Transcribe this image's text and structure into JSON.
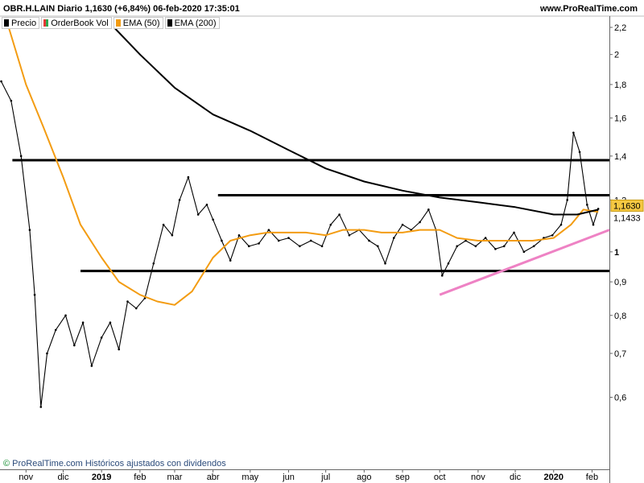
{
  "header": {
    "title": "OBR.H.LAIN Diario 1,1630 (+6,84%) 06-feb-2020 17:35:01",
    "brand": "www.ProRealTime.com"
  },
  "legend": [
    {
      "label": "Precio",
      "color": "#000000"
    },
    {
      "label": "OrderBook Vol",
      "color": "#2fa84f"
    },
    {
      "label": "EMA (50)",
      "color": "#f39c12"
    },
    {
      "label": "EMA (200)",
      "color": "#000000"
    }
  ],
  "footer": {
    "copyright": "©",
    "text": "ProRealTime.com Históricos ajustados con dividendos"
  },
  "chart_data": {
    "type": "line",
    "title": "OBR.H.LAIN Diario 1,1630 (+6,84%) 06-feb-2020 17:35:01",
    "y_scale": "log",
    "ylim": [
      0.5,
      2.2
    ],
    "y_ticks": [
      "2,2",
      "2",
      "1,8",
      "1,6",
      "1,4",
      "1,2",
      "1",
      "0,9",
      "0,8",
      "0,7",
      "0,6"
    ],
    "y_tick_values": [
      2.2,
      2.0,
      1.8,
      1.6,
      1.4,
      1.2,
      1.0,
      0.9,
      0.8,
      0.7,
      0.6
    ],
    "xlim": [
      "2018-10-11",
      "2020-02-15"
    ],
    "x_ticks": [
      {
        "label": "nov",
        "date": "2018-11-01",
        "bold": false
      },
      {
        "label": "dic",
        "date": "2018-12-01",
        "bold": false
      },
      {
        "label": "2019",
        "date": "2019-01-01",
        "bold": true
      },
      {
        "label": "feb",
        "date": "2019-02-01",
        "bold": false
      },
      {
        "label": "mar",
        "date": "2019-03-01",
        "bold": false
      },
      {
        "label": "abr",
        "date": "2019-04-01",
        "bold": false
      },
      {
        "label": "may",
        "date": "2019-05-01",
        "bold": false
      },
      {
        "label": "jun",
        "date": "2019-06-01",
        "bold": false
      },
      {
        "label": "jul",
        "date": "2019-07-01",
        "bold": false
      },
      {
        "label": "ago",
        "date": "2019-08-01",
        "bold": false
      },
      {
        "label": "sep",
        "date": "2019-09-01",
        "bold": false
      },
      {
        "label": "oct",
        "date": "2019-10-01",
        "bold": false
      },
      {
        "label": "nov",
        "date": "2019-11-01",
        "bold": false
      },
      {
        "label": "dic",
        "date": "2019-12-01",
        "bold": false
      },
      {
        "label": "2020",
        "date": "2020-01-01",
        "bold": true
      },
      {
        "label": "feb",
        "date": "2020-02-01",
        "bold": false
      }
    ],
    "series": [
      {
        "name": "Precio",
        "color": "#000000",
        "x": [
          "2018-10-12",
          "2018-10-20",
          "2018-10-28",
          "2018-11-04",
          "2018-11-08",
          "2018-11-13",
          "2018-11-18",
          "2018-11-25",
          "2018-12-03",
          "2018-12-10",
          "2018-12-17",
          "2018-12-24",
          "2019-01-01",
          "2019-01-08",
          "2019-01-15",
          "2019-01-22",
          "2019-01-29",
          "2019-02-05",
          "2019-02-12",
          "2019-02-20",
          "2019-02-27",
          "2019-03-05",
          "2019-03-12",
          "2019-03-20",
          "2019-03-27",
          "2019-04-01",
          "2019-04-08",
          "2019-04-15",
          "2019-04-22",
          "2019-04-30",
          "2019-05-08",
          "2019-05-16",
          "2019-05-24",
          "2019-06-01",
          "2019-06-10",
          "2019-06-19",
          "2019-06-28",
          "2019-07-05",
          "2019-07-12",
          "2019-07-20",
          "2019-07-28",
          "2019-08-05",
          "2019-08-12",
          "2019-08-18",
          "2019-08-25",
          "2019-09-01",
          "2019-09-08",
          "2019-09-15",
          "2019-09-22",
          "2019-09-28",
          "2019-10-03",
          "2019-10-08",
          "2019-10-15",
          "2019-10-22",
          "2019-10-30",
          "2019-11-07",
          "2019-11-15",
          "2019-11-22",
          "2019-11-30",
          "2019-12-08",
          "2019-12-16",
          "2019-12-24",
          "2019-12-31",
          "2020-01-07",
          "2020-01-12",
          "2020-01-17",
          "2020-01-22",
          "2020-01-28",
          "2020-02-02",
          "2020-02-06"
        ],
        "values": [
          1.82,
          1.7,
          1.4,
          1.08,
          0.86,
          0.58,
          0.7,
          0.76,
          0.8,
          0.72,
          0.78,
          0.67,
          0.74,
          0.78,
          0.71,
          0.84,
          0.82,
          0.85,
          0.96,
          1.1,
          1.06,
          1.2,
          1.3,
          1.14,
          1.18,
          1.12,
          1.04,
          0.97,
          1.06,
          1.02,
          1.03,
          1.08,
          1.04,
          1.05,
          1.02,
          1.04,
          1.02,
          1.1,
          1.14,
          1.06,
          1.08,
          1.04,
          1.02,
          0.96,
          1.05,
          1.1,
          1.08,
          1.11,
          1.16,
          1.08,
          0.92,
          0.96,
          1.02,
          1.04,
          1.02,
          1.05,
          1.01,
          1.02,
          1.07,
          1.0,
          1.02,
          1.05,
          1.06,
          1.1,
          1.2,
          1.52,
          1.42,
          1.18,
          1.1,
          1.163
        ]
      },
      {
        "name": "EMA (50)",
        "color": "#f39c12",
        "x": [
          "2018-10-18",
          "2018-11-01",
          "2018-11-15",
          "2018-12-01",
          "2018-12-15",
          "2019-01-01",
          "2019-01-15",
          "2019-02-01",
          "2019-02-15",
          "2019-03-01",
          "2019-03-15",
          "2019-04-01",
          "2019-04-15",
          "2019-05-01",
          "2019-05-15",
          "2019-06-01",
          "2019-06-15",
          "2019-07-01",
          "2019-07-15",
          "2019-08-01",
          "2019-08-15",
          "2019-09-01",
          "2019-09-15",
          "2019-10-01",
          "2019-10-15",
          "2019-11-01",
          "2019-11-15",
          "2019-12-01",
          "2019-12-15",
          "2020-01-01",
          "2020-01-15",
          "2020-01-25",
          "2020-02-06"
        ],
        "values": [
          2.2,
          1.8,
          1.55,
          1.3,
          1.1,
          0.98,
          0.9,
          0.86,
          0.84,
          0.83,
          0.87,
          0.98,
          1.04,
          1.06,
          1.07,
          1.07,
          1.07,
          1.06,
          1.08,
          1.08,
          1.07,
          1.07,
          1.08,
          1.08,
          1.05,
          1.04,
          1.04,
          1.04,
          1.04,
          1.05,
          1.1,
          1.16,
          1.15
        ]
      },
      {
        "name": "EMA (200)",
        "color": "#000000",
        "x": [
          "2019-01-11",
          "2019-02-01",
          "2019-03-01",
          "2019-04-01",
          "2019-05-01",
          "2019-06-01",
          "2019-07-01",
          "2019-08-01",
          "2019-09-01",
          "2019-10-01",
          "2019-11-01",
          "2019-12-01",
          "2020-01-01",
          "2020-01-20",
          "2020-02-06"
        ],
        "values": [
          2.2,
          2.0,
          1.78,
          1.62,
          1.53,
          1.43,
          1.34,
          1.28,
          1.24,
          1.21,
          1.19,
          1.17,
          1.14,
          1.14,
          1.16
        ]
      }
    ],
    "horizontal_lines": [
      {
        "value": 1.38,
        "from": "2018-10-21",
        "to": "2020-02-15"
      },
      {
        "value": 1.22,
        "from": "2019-04-05",
        "to": "2020-02-15"
      },
      {
        "value": 0.935,
        "from": "2018-12-15",
        "to": "2020-02-15"
      }
    ],
    "trendline": {
      "color": "#ee82c4",
      "from": {
        "x": "2019-10-01",
        "y": 0.86
      },
      "to": {
        "x": "2020-02-15",
        "y": 1.08
      }
    },
    "price_labels": [
      {
        "value": 1.163,
        "text": "1,1630",
        "bg": "#f5c842"
      },
      {
        "value": 1.1433,
        "text": "1,1433",
        "bg": "#ffffff"
      }
    ]
  }
}
